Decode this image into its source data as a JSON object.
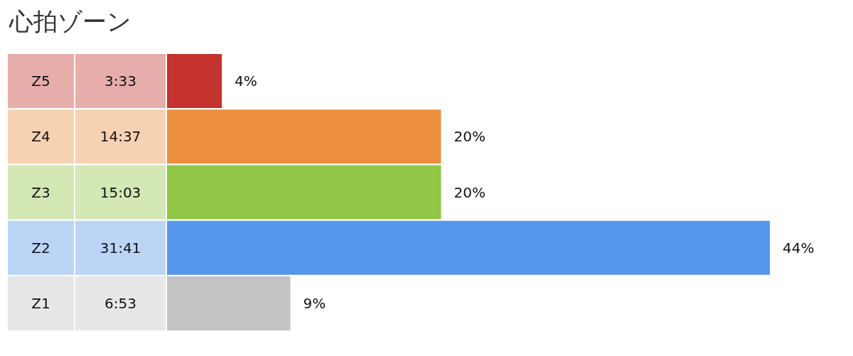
{
  "chart_data": {
    "type": "bar",
    "orientation": "horizontal",
    "title": "心拍ゾーン",
    "categories": [
      "Z5",
      "Z4",
      "Z3",
      "Z2",
      "Z1"
    ],
    "values": [
      4,
      20,
      20,
      44,
      9
    ],
    "colors": [
      "#c4332d",
      "#eb8f3f",
      "#92c647",
      "#5497eb",
      "#c3c3c3"
    ],
    "value_labels": [
      "4%",
      "20%",
      "20%",
      "44%",
      "9%"
    ],
    "annotations": [
      "3:33",
      "14:37",
      "15:03",
      "31:41",
      "6:53"
    ]
  }
}
